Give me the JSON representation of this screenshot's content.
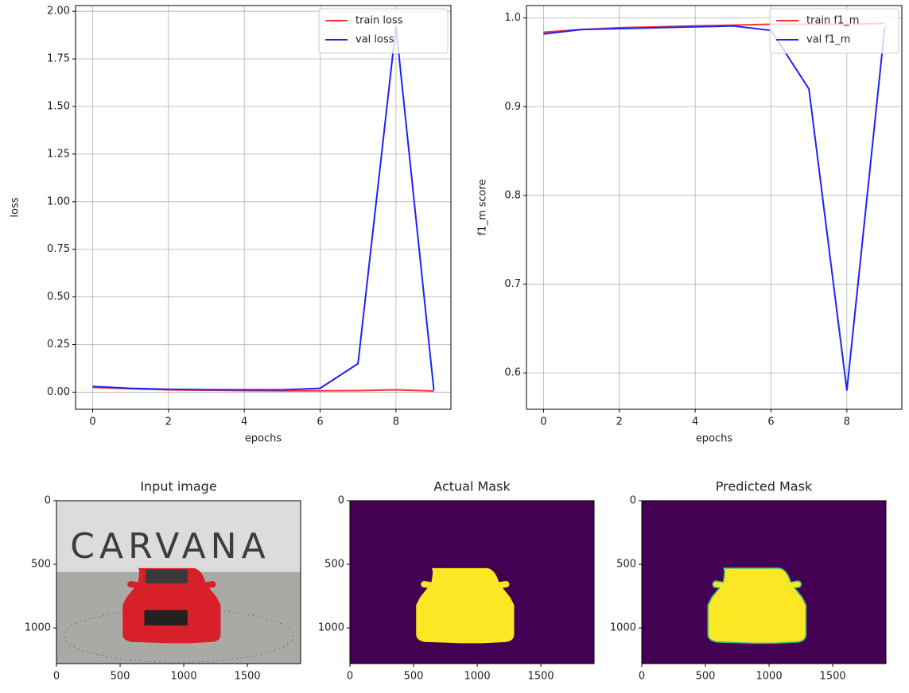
{
  "chart_data": [
    {
      "type": "line",
      "xlabel": "epochs",
      "ylabel": "loss",
      "x": [
        0,
        1,
        2,
        3,
        4,
        5,
        6,
        7,
        8,
        9
      ],
      "series": [
        {
          "name": "train loss",
          "color": "#ff3030",
          "values": [
            0.025,
            0.018,
            0.012,
            0.01,
            0.008,
            0.007,
            0.007,
            0.008,
            0.012,
            0.006
          ]
        },
        {
          "name": "val loss",
          "color": "#2020ff",
          "values": [
            0.03,
            0.02,
            0.015,
            0.013,
            0.012,
            0.012,
            0.02,
            0.15,
            1.92,
            0.01
          ]
        }
      ],
      "xlim": [
        -0.45,
        9.45
      ],
      "ylim": [
        -0.09,
        2.03
      ],
      "xticks": [
        0,
        2,
        4,
        6,
        8
      ],
      "yticks": [
        {
          "value": 0,
          "label": "0.00"
        },
        {
          "value": 0.25,
          "label": "0.25"
        },
        {
          "value": 0.5,
          "label": "0.50"
        },
        {
          "value": 0.75,
          "label": "0.75"
        },
        {
          "value": 1,
          "label": "1.00"
        },
        {
          "value": 1.25,
          "label": "1.25"
        },
        {
          "value": 1.5,
          "label": "1.50"
        },
        {
          "value": 1.75,
          "label": "1.75"
        },
        {
          "value": 2,
          "label": "2.00"
        }
      ],
      "grid": true,
      "legend": "upper-right"
    },
    {
      "type": "line",
      "xlabel": "epochs",
      "ylabel": "f1_m score",
      "x": [
        0,
        1,
        2,
        3,
        4,
        5,
        6,
        7,
        8,
        9
      ],
      "series": [
        {
          "name": "train f1_m",
          "color": "#ff3030",
          "values": [
            0.984,
            0.987,
            0.989,
            0.99,
            0.991,
            0.992,
            0.993,
            0.993,
            0.993,
            0.994
          ]
        },
        {
          "name": "val f1_m",
          "color": "#2020ff",
          "values": [
            0.982,
            0.987,
            0.988,
            0.989,
            0.99,
            0.991,
            0.986,
            0.92,
            0.58,
            0.99
          ]
        }
      ],
      "xlim": [
        -0.45,
        9.45
      ],
      "ylim": [
        0.559,
        1.014
      ],
      "xticks": [
        0,
        2,
        4,
        6,
        8
      ],
      "yticks": [
        0.6,
        0.7,
        0.8,
        0.9,
        {
          "value": 1,
          "label": "1.0"
        }
      ],
      "grid": true,
      "legend": "upper-right"
    },
    {
      "type": "image",
      "title": "Input image",
      "photo_text": "CARVANA",
      "xlim": [
        0,
        1918
      ],
      "ylim": [
        1280,
        0
      ],
      "xticks": [
        0,
        500,
        1000,
        1500
      ],
      "yticks": [
        0,
        500,
        1000
      ]
    },
    {
      "type": "image",
      "title": "Actual Mask",
      "xlim": [
        0,
        1918
      ],
      "ylim": [
        1280,
        0
      ],
      "xticks": [
        0,
        500,
        1000,
        1500
      ],
      "yticks": [
        0,
        500,
        1000
      ]
    },
    {
      "type": "image",
      "title": "Predicted Mask",
      "xlim": [
        0,
        1918
      ],
      "ylim": [
        1280,
        0
      ],
      "xticks": [
        0,
        500,
        1000,
        1500
      ],
      "yticks": [
        0,
        500,
        1000
      ]
    }
  ]
}
